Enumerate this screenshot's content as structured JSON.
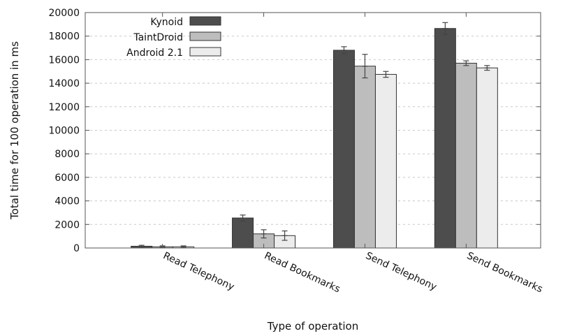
{
  "chart_data": {
    "type": "bar",
    "title": "",
    "xlabel": "Type of operation",
    "ylabel": "Total time for 100 operation in ms",
    "ylim": [
      0,
      20000
    ],
    "yticks": [
      0,
      2000,
      4000,
      6000,
      8000,
      10000,
      12000,
      14000,
      16000,
      18000,
      20000
    ],
    "grid": true,
    "legend_position": "top-left",
    "categories": [
      "Read Telephony",
      "Read Bookmarks",
      "Send Telephony",
      "Send Bookmarks"
    ],
    "series": [
      {
        "name": "Kynoid",
        "color": "#4d4d4d",
        "values": [
          150,
          2550,
          16800,
          18650
        ],
        "errors": [
          80,
          250,
          300,
          500
        ]
      },
      {
        "name": "TaintDroid",
        "color": "#bdbdbd",
        "values": [
          100,
          1200,
          15450,
          15700
        ],
        "errors": [
          80,
          350,
          1000,
          200
        ]
      },
      {
        "name": "Android 2.1",
        "color": "#ececec",
        "values": [
          100,
          1050,
          14750,
          15300
        ],
        "errors": [
          80,
          400,
          250,
          200
        ]
      }
    ]
  }
}
